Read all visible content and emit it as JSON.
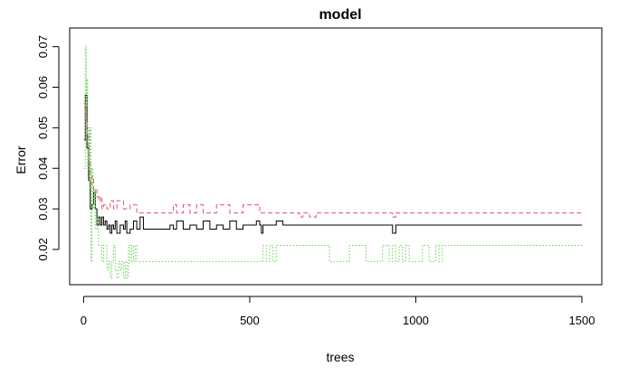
{
  "chart_data": {
    "type": "line",
    "title": "model",
    "xlabel": "trees",
    "ylabel": "Error",
    "xlim": [
      -42,
      1560
    ],
    "ylim": [
      0.0113,
      0.0746
    ],
    "x_ticks": [
      0,
      500,
      1000,
      1500
    ],
    "y_ticks": [
      0.02,
      0.03,
      0.04,
      0.05,
      0.06,
      0.07
    ],
    "x_tick_labels": [
      "0",
      "500",
      "1000",
      "1500"
    ],
    "y_tick_labels": [
      "0.02",
      "0.03",
      "0.04",
      "0.05",
      "0.06",
      "0.07"
    ],
    "grid": false,
    "legend": "none",
    "series": [
      {
        "color": "#000000",
        "line_style": "solid",
        "x": [
          1,
          5,
          10,
          15,
          20,
          25,
          30,
          35,
          40,
          45,
          50,
          55,
          60,
          65,
          70,
          75,
          80,
          85,
          90,
          95,
          100,
          110,
          120,
          125,
          130,
          140,
          150,
          160,
          170,
          180,
          200,
          230,
          260,
          270,
          280,
          300,
          320,
          340,
          360,
          380,
          400,
          420,
          440,
          460,
          480,
          500,
          520,
          530,
          535,
          540,
          560,
          580,
          600,
          650,
          700,
          750,
          800,
          850,
          900,
          930,
          940,
          950,
          1000,
          1050,
          1080,
          1100,
          1200,
          1300,
          1400,
          1500
        ],
        "y": [
          0.047,
          0.058,
          0.045,
          0.037,
          0.03,
          0.031,
          0.034,
          0.03,
          0.026,
          0.028,
          0.026,
          0.028,
          0.026,
          0.027,
          0.025,
          0.026,
          0.024,
          0.026,
          0.025,
          0.027,
          0.024,
          0.026,
          0.025,
          0.027,
          0.024,
          0.025,
          0.027,
          0.025,
          0.028,
          0.025,
          0.025,
          0.025,
          0.026,
          0.025,
          0.027,
          0.025,
          0.026,
          0.025,
          0.027,
          0.025,
          0.026,
          0.025,
          0.027,
          0.025,
          0.026,
          0.026,
          0.027,
          0.026,
          0.024,
          0.026,
          0.026,
          0.027,
          0.026,
          0.026,
          0.026,
          0.026,
          0.026,
          0.026,
          0.026,
          0.024,
          0.026,
          0.026,
          0.026,
          0.026,
          0.026,
          0.026,
          0.026,
          0.026,
          0.026,
          0.026
        ]
      },
      {
        "color": "#df536b",
        "line_style": "dashed",
        "x": [
          1,
          5,
          10,
          15,
          20,
          25,
          30,
          35,
          40,
          45,
          50,
          55,
          60,
          70,
          80,
          90,
          100,
          120,
          140,
          160,
          180,
          200,
          260,
          270,
          280,
          300,
          320,
          340,
          360,
          400,
          440,
          480,
          500,
          520,
          530,
          540,
          600,
          640,
          650,
          660,
          680,
          700,
          710,
          750,
          800,
          900,
          920,
          930,
          940,
          960,
          1000,
          1100,
          1200,
          1300,
          1400,
          1500
        ],
        "y": [
          0.056,
          0.052,
          0.048,
          0.042,
          0.036,
          0.038,
          0.034,
          0.035,
          0.033,
          0.032,
          0.033,
          0.03,
          0.031,
          0.03,
          0.032,
          0.03,
          0.032,
          0.03,
          0.031,
          0.029,
          0.029,
          0.029,
          0.029,
          0.031,
          0.029,
          0.031,
          0.029,
          0.031,
          0.029,
          0.031,
          0.029,
          0.031,
          0.031,
          0.031,
          0.029,
          0.029,
          0.029,
          0.029,
          0.028,
          0.029,
          0.028,
          0.029,
          0.029,
          0.029,
          0.029,
          0.029,
          0.029,
          0.028,
          0.029,
          0.029,
          0.029,
          0.029,
          0.029,
          0.029,
          0.029,
          0.029
        ]
      },
      {
        "color": "#61d04f",
        "line_style": "dotted",
        "x": [
          1,
          5,
          8,
          10,
          12,
          15,
          18,
          20,
          22,
          25,
          28,
          30,
          35,
          40,
          45,
          50,
          55,
          60,
          65,
          70,
          75,
          80,
          85,
          90,
          95,
          100,
          105,
          110,
          115,
          120,
          125,
          130,
          135,
          140,
          145,
          150,
          155,
          160,
          165,
          170,
          175,
          180,
          200,
          260,
          300,
          400,
          500,
          510,
          520,
          530,
          540,
          550,
          560,
          570,
          580,
          600,
          650,
          700,
          720,
          740,
          750,
          800,
          850,
          900,
          920,
          930,
          940,
          950,
          960,
          970,
          980,
          1000,
          1020,
          1040,
          1060,
          1070,
          1080,
          1100,
          1200,
          1300,
          1400,
          1500
        ],
        "y": [
          0.04,
          0.07,
          0.055,
          0.062,
          0.04,
          0.05,
          0.035,
          0.05,
          0.017,
          0.04,
          0.03,
          0.035,
          0.025,
          0.028,
          0.021,
          0.021,
          0.017,
          0.021,
          0.021,
          0.015,
          0.017,
          0.013,
          0.017,
          0.021,
          0.015,
          0.013,
          0.017,
          0.015,
          0.017,
          0.013,
          0.017,
          0.013,
          0.021,
          0.017,
          0.021,
          0.017,
          0.021,
          0.017,
          0.017,
          0.017,
          0.017,
          0.017,
          0.017,
          0.017,
          0.017,
          0.017,
          0.017,
          0.017,
          0.017,
          0.017,
          0.021,
          0.017,
          0.021,
          0.017,
          0.021,
          0.021,
          0.021,
          0.021,
          0.021,
          0.017,
          0.017,
          0.021,
          0.017,
          0.021,
          0.017,
          0.021,
          0.017,
          0.021,
          0.017,
          0.021,
          0.017,
          0.017,
          0.021,
          0.017,
          0.021,
          0.017,
          0.021,
          0.021,
          0.021,
          0.021,
          0.021,
          0.021
        ]
      }
    ]
  }
}
